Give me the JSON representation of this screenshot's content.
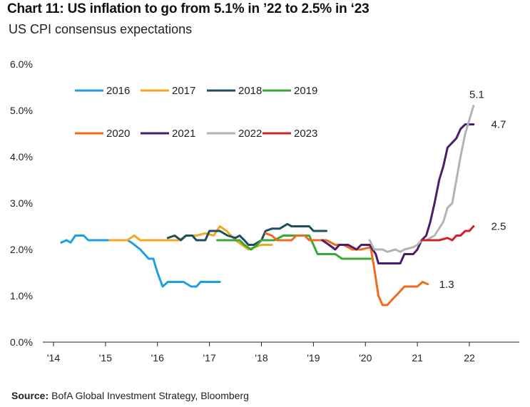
{
  "title": "Chart 11: US inflation to go from 5.1% in ’22 to 2.5% in ‘23",
  "subtitle": "US CPI consensus expectations",
  "source_label": "Source:",
  "source_text": "BofA Global Investment Strategy, Bloomberg",
  "chart_data": {
    "type": "line",
    "title": "Chart 11: US inflation to go from 5.1% in ’22 to 2.5% in ‘23",
    "subtitle": "US CPI consensus expectations",
    "xlabel": "",
    "ylabel": "",
    "xlim": [
      2014,
      2023
    ],
    "ylim": [
      0,
      6
    ],
    "x_ticks": [
      {
        "x": 2014,
        "label": "'14"
      },
      {
        "x": 2015,
        "label": "'15"
      },
      {
        "x": 2016,
        "label": "'16"
      },
      {
        "x": 2017,
        "label": "'17"
      },
      {
        "x": 2018,
        "label": "'18"
      },
      {
        "x": 2019,
        "label": "'19"
      },
      {
        "x": 2020,
        "label": "'20"
      },
      {
        "x": 2021,
        "label": "21"
      },
      {
        "x": 2022,
        "label": "22"
      }
    ],
    "y_ticks": [
      {
        "y": 0,
        "label": "0.0%"
      },
      {
        "y": 1,
        "label": "1.0%"
      },
      {
        "y": 2,
        "label": "2.0%"
      },
      {
        "y": 3,
        "label": "3.0%"
      },
      {
        "y": 4,
        "label": "4.0%"
      },
      {
        "y": 5,
        "label": "5.0%"
      },
      {
        "y": 6,
        "label": "6.0%"
      }
    ],
    "grid": false,
    "legend_position": "top-left",
    "series": [
      {
        "name": "2016",
        "color": "#1ba1e2",
        "points": [
          [
            2014.15,
            2.15
          ],
          [
            2014.25,
            2.2
          ],
          [
            2014.33,
            2.15
          ],
          [
            2014.42,
            2.3
          ],
          [
            2014.58,
            2.3
          ],
          [
            2014.67,
            2.2
          ],
          [
            2015.0,
            2.2
          ],
          [
            2015.42,
            2.2
          ],
          [
            2015.5,
            2.15
          ],
          [
            2015.67,
            2.0
          ],
          [
            2015.75,
            1.9
          ],
          [
            2015.83,
            1.8
          ],
          [
            2015.92,
            1.8
          ],
          [
            2016.0,
            1.5
          ],
          [
            2016.1,
            1.2
          ],
          [
            2016.2,
            1.3
          ],
          [
            2016.5,
            1.3
          ],
          [
            2016.65,
            1.2
          ],
          [
            2016.75,
            1.2
          ],
          [
            2016.83,
            1.3
          ],
          [
            2017.2,
            1.3
          ]
        ]
      },
      {
        "name": "2017",
        "color": "#f5a623",
        "points": [
          [
            2015.08,
            2.2
          ],
          [
            2015.42,
            2.2
          ],
          [
            2015.55,
            2.3
          ],
          [
            2015.67,
            2.2
          ],
          [
            2016.0,
            2.2
          ],
          [
            2016.42,
            2.2
          ],
          [
            2016.55,
            2.3
          ],
          [
            2016.75,
            2.3
          ],
          [
            2016.92,
            2.35
          ],
          [
            2017.08,
            2.3
          ],
          [
            2017.2,
            2.5
          ],
          [
            2017.33,
            2.4
          ],
          [
            2017.5,
            2.2
          ],
          [
            2017.75,
            2.0
          ],
          [
            2018.0,
            2.1
          ],
          [
            2018.2,
            2.1
          ]
        ]
      },
      {
        "name": "2018",
        "color": "#1d4f60",
        "points": [
          [
            2016.2,
            2.25
          ],
          [
            2016.33,
            2.3
          ],
          [
            2016.45,
            2.2
          ],
          [
            2016.55,
            2.3
          ],
          [
            2016.67,
            2.3
          ],
          [
            2016.75,
            2.2
          ],
          [
            2016.92,
            2.2
          ],
          [
            2017.0,
            2.4
          ],
          [
            2017.2,
            2.4
          ],
          [
            2017.35,
            2.3
          ],
          [
            2017.5,
            2.25
          ],
          [
            2017.58,
            2.3
          ],
          [
            2017.67,
            2.2
          ],
          [
            2017.75,
            2.1
          ],
          [
            2017.85,
            2.1
          ],
          [
            2018.0,
            2.2
          ],
          [
            2018.08,
            2.4
          ],
          [
            2018.2,
            2.45
          ],
          [
            2018.35,
            2.45
          ],
          [
            2018.5,
            2.55
          ],
          [
            2018.58,
            2.5
          ],
          [
            2018.75,
            2.5
          ],
          [
            2018.92,
            2.5
          ],
          [
            2019.0,
            2.4
          ],
          [
            2019.25,
            2.4
          ]
        ]
      },
      {
        "name": "2019",
        "color": "#3aa935",
        "points": [
          [
            2017.15,
            2.2
          ],
          [
            2017.4,
            2.2
          ],
          [
            2017.58,
            2.2
          ],
          [
            2017.67,
            2.1
          ],
          [
            2017.8,
            2.0
          ],
          [
            2017.92,
            2.1
          ],
          [
            2018.0,
            2.2
          ],
          [
            2018.25,
            2.2
          ],
          [
            2018.42,
            2.3
          ],
          [
            2018.58,
            2.3
          ],
          [
            2018.75,
            2.3
          ],
          [
            2018.92,
            2.3
          ],
          [
            2019.0,
            2.1
          ],
          [
            2019.08,
            1.9
          ],
          [
            2019.42,
            1.9
          ],
          [
            2019.55,
            1.8
          ],
          [
            2019.75,
            1.8
          ],
          [
            2020.0,
            1.8
          ],
          [
            2020.1,
            1.8
          ]
        ]
      },
      {
        "name": "2020",
        "color": "#f26a1b",
        "points": [
          [
            2018.08,
            2.35
          ],
          [
            2018.2,
            2.3
          ],
          [
            2018.3,
            2.2
          ],
          [
            2018.42,
            2.2
          ],
          [
            2018.58,
            2.2
          ],
          [
            2018.67,
            2.3
          ],
          [
            2018.83,
            2.3
          ],
          [
            2018.92,
            2.2
          ],
          [
            2019.08,
            2.2
          ],
          [
            2019.25,
            2.2
          ],
          [
            2019.42,
            2.1
          ],
          [
            2019.58,
            2.1
          ],
          [
            2019.75,
            2.0
          ],
          [
            2019.92,
            2.0
          ],
          [
            2020.1,
            2.05
          ],
          [
            2020.17,
            1.6
          ],
          [
            2020.25,
            1.0
          ],
          [
            2020.33,
            0.8
          ],
          [
            2020.42,
            0.8
          ],
          [
            2020.5,
            0.9
          ],
          [
            2020.67,
            1.1
          ],
          [
            2020.75,
            1.2
          ],
          [
            2021.0,
            1.2
          ],
          [
            2021.1,
            1.3
          ],
          [
            2021.2,
            1.25
          ]
        ]
      },
      {
        "name": "2021",
        "color": "#4b1d6b",
        "points": [
          [
            2019.17,
            2.2
          ],
          [
            2019.3,
            2.1
          ],
          [
            2019.42,
            2.0
          ],
          [
            2019.5,
            2.1
          ],
          [
            2019.67,
            2.1
          ],
          [
            2019.83,
            2.0
          ],
          [
            2019.92,
            2.1
          ],
          [
            2020.08,
            2.1
          ],
          [
            2020.2,
            1.9
          ],
          [
            2020.25,
            1.7
          ],
          [
            2020.67,
            1.7
          ],
          [
            2020.75,
            1.9
          ],
          [
            2020.92,
            1.9
          ],
          [
            2021.0,
            2.0
          ],
          [
            2021.08,
            2.2
          ],
          [
            2021.17,
            2.3
          ],
          [
            2021.25,
            2.6
          ],
          [
            2021.33,
            3.0
          ],
          [
            2021.42,
            3.5
          ],
          [
            2021.5,
            3.8
          ],
          [
            2021.58,
            4.2
          ],
          [
            2021.75,
            4.4
          ],
          [
            2021.83,
            4.6
          ],
          [
            2021.92,
            4.7
          ],
          [
            2022.08,
            4.7
          ]
        ]
      },
      {
        "name": "2022",
        "color": "#b3b3b3",
        "points": [
          [
            2020.08,
            2.2
          ],
          [
            2020.17,
            2.0
          ],
          [
            2020.33,
            2.0
          ],
          [
            2020.42,
            1.95
          ],
          [
            2020.58,
            2.0
          ],
          [
            2020.67,
            1.95
          ],
          [
            2020.75,
            2.0
          ],
          [
            2020.92,
            2.05
          ],
          [
            2021.0,
            2.1
          ],
          [
            2021.08,
            2.2
          ],
          [
            2021.17,
            2.2
          ],
          [
            2021.33,
            2.3
          ],
          [
            2021.5,
            2.6
          ],
          [
            2021.58,
            2.9
          ],
          [
            2021.67,
            3.0
          ],
          [
            2021.75,
            3.5
          ],
          [
            2021.83,
            4.0
          ],
          [
            2021.92,
            4.5
          ],
          [
            2022.0,
            4.8
          ],
          [
            2022.08,
            5.1
          ]
        ]
      },
      {
        "name": "2023",
        "color": "#d32026",
        "points": [
          [
            2021.08,
            2.2
          ],
          [
            2021.42,
            2.2
          ],
          [
            2021.58,
            2.25
          ],
          [
            2021.67,
            2.2
          ],
          [
            2021.75,
            2.3
          ],
          [
            2021.83,
            2.3
          ],
          [
            2021.92,
            2.4
          ],
          [
            2022.0,
            2.4
          ],
          [
            2022.08,
            2.5
          ]
        ]
      }
    ],
    "annotations": [
      {
        "text": "5.1",
        "x": 2022.0,
        "y": 5.35
      },
      {
        "text": "4.7",
        "x": 2022.42,
        "y": 4.7
      },
      {
        "text": "2.5",
        "x": 2022.42,
        "y": 2.5
      },
      {
        "text": "1.3",
        "x": 2021.42,
        "y": 1.25
      }
    ]
  }
}
